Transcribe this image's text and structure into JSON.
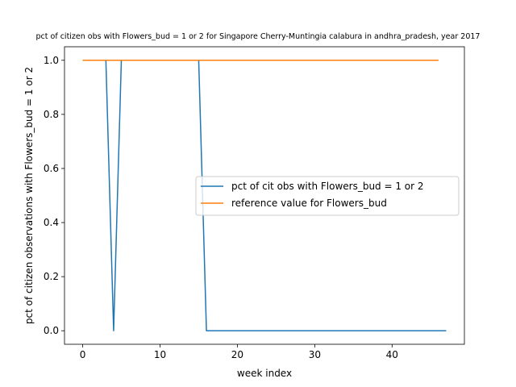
{
  "chart_data": {
    "type": "line",
    "title": "pct of citizen obs with Flowers_bud = 1 or 2 for Singapore Cherry-Muntingia calabura in andhra_pradesh, year 2017",
    "xlabel": "week index",
    "ylabel": "pct of citizen observations with Flowers_bud = 1 or 2",
    "xlim": [
      -2.35,
      49.35
    ],
    "ylim": [
      -0.05,
      1.05
    ],
    "xticks": [
      0,
      10,
      20,
      30,
      40
    ],
    "yticks": [
      0.0,
      0.2,
      0.4,
      0.6,
      0.8,
      1.0
    ],
    "xtick_labels": [
      "0",
      "10",
      "20",
      "30",
      "40"
    ],
    "ytick_labels": [
      "0.0",
      "0.2",
      "0.4",
      "0.6",
      "0.8",
      "1.0"
    ],
    "grid": false,
    "legend_position": "center-right",
    "series": [
      {
        "name": "pct of cit obs with Flowers_bud = 1 or 2",
        "color": "#1f77b4",
        "x": [
          0,
          1,
          2,
          3,
          4,
          5,
          6,
          7,
          8,
          9,
          10,
          11,
          12,
          13,
          14,
          15,
          16,
          17,
          18,
          19,
          20,
          21,
          22,
          23,
          24,
          25,
          26,
          27,
          28,
          29,
          30,
          31,
          32,
          33,
          34,
          35,
          36,
          37,
          38,
          39,
          40,
          41,
          42,
          43,
          44,
          45,
          46,
          47
        ],
        "values": [
          1,
          1,
          1,
          1,
          0,
          1,
          1,
          1,
          1,
          1,
          1,
          1,
          1,
          1,
          1,
          1,
          0,
          0,
          0,
          0,
          0,
          0,
          0,
          0,
          0,
          0,
          0,
          0,
          0,
          0,
          0,
          0,
          0,
          0,
          0,
          0,
          0,
          0,
          0,
          0,
          0,
          0,
          0,
          0,
          0,
          0,
          0,
          0
        ]
      },
      {
        "name": "reference value for Flowers_bud",
        "color": "#ff7f0e",
        "x": [
          0,
          1,
          2,
          3,
          4,
          5,
          6,
          7,
          8,
          9,
          10,
          11,
          12,
          13,
          14,
          15,
          16,
          17,
          18,
          19,
          20,
          21,
          22,
          23,
          24,
          25,
          26,
          27,
          28,
          29,
          30,
          31,
          32,
          33,
          34,
          35,
          36,
          37,
          38,
          39,
          40,
          41,
          42,
          43,
          44,
          45,
          46
        ],
        "values": [
          1,
          1,
          1,
          1,
          1,
          1,
          1,
          1,
          1,
          1,
          1,
          1,
          1,
          1,
          1,
          1,
          1,
          1,
          1,
          1,
          1,
          1,
          1,
          1,
          1,
          1,
          1,
          1,
          1,
          1,
          1,
          1,
          1,
          1,
          1,
          1,
          1,
          1,
          1,
          1,
          1,
          1,
          1,
          1,
          1,
          1,
          1
        ]
      }
    ]
  }
}
